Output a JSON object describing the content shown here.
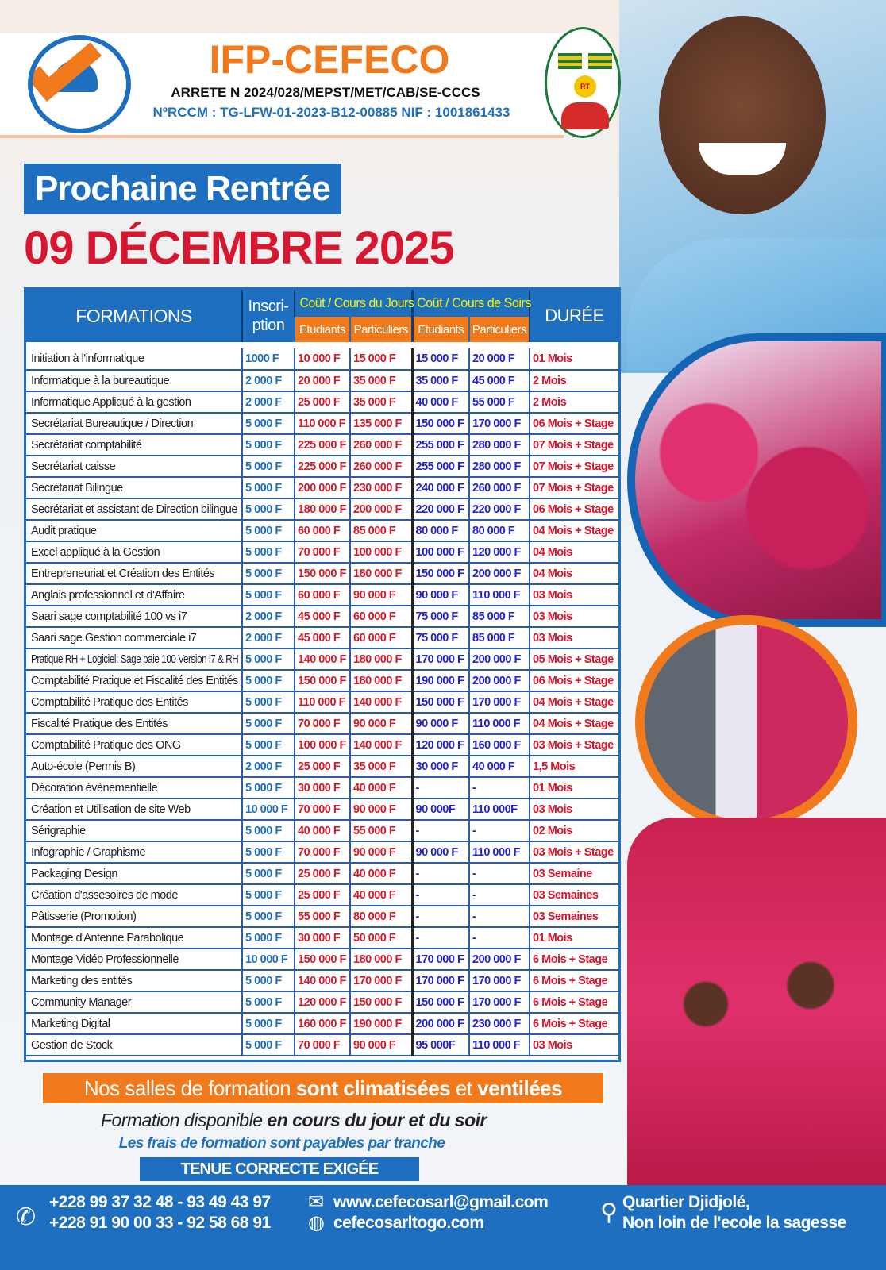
{
  "header": {
    "brand": "IFP-CEFECO",
    "arrete": "ARRETE N 2024/028/MEPST/MET/CAB/SE-CCCS",
    "rccm": "NºRCCM : TG-LFW-01-2023-B12-00885 NIF : 1001861433",
    "seal_text": "RT"
  },
  "announcement": {
    "title": "Prochaine Rentrée",
    "date": "09 DÉCEMBRE 2025"
  },
  "table": {
    "headers": {
      "formations": "FORMATIONS",
      "inscription": "Inscri-ption",
      "cours_jour": "Coût / Cours du Jours",
      "cours_soir": "Coût / Cours de Soirs",
      "etudiants": "Etudiants",
      "particuliers": "Particuliers",
      "duree": "DURÉE"
    },
    "rows": [
      [
        "Initiation à l'informatique",
        "1000 F",
        "10 000 F",
        "15 000 F",
        "15 000 F",
        "20 000 F",
        "01 Mois"
      ],
      [
        "Informatique à la bureautique",
        "2 000 F",
        "20 000 F",
        "35 000 F",
        "35 000 F",
        "45 000 F",
        "2 Mois"
      ],
      [
        "Informatique Appliqué à la gestion",
        "2 000 F",
        "25 000 F",
        "35 000 F",
        "40 000 F",
        "55 000 F",
        "2 Mois"
      ],
      [
        "Secrétariat Bureautique / Direction",
        "5 000 F",
        "110 000 F",
        "135 000 F",
        "150 000 F",
        "170 000 F",
        "06 Mois + Stage"
      ],
      [
        "Secrétariat comptabilité",
        "5 000 F",
        "225 000 F",
        "260 000 F",
        "255 000 F",
        "280 000 F",
        "07 Mois + Stage"
      ],
      [
        "Secrétariat caisse",
        "5 000 F",
        "225 000 F",
        "260 000 F",
        "255 000 F",
        "280 000 F",
        "07 Mois + Stage"
      ],
      [
        "Secrétariat Bilingue",
        "5 000 F",
        "200 000 F",
        "230 000 F",
        "240 000 F",
        "260 000 F",
        "07 Mois + Stage"
      ],
      [
        "Secrétariat et assistant de Direction bilingue",
        "5 000 F",
        "180 000 F",
        "200 000 F",
        "220 000 F",
        "220 000 F",
        "06 Mois + Stage"
      ],
      [
        "Audit pratique",
        "5 000 F",
        "60 000 F",
        "85 000 F",
        "80 000 F",
        "80 000 F",
        "04 Mois + Stage"
      ],
      [
        "Excel appliqué à la Gestion",
        "5 000 F",
        "70 000 F",
        "100 000 F",
        "100 000 F",
        "120 000 F",
        "04 Mois"
      ],
      [
        "Entrepreneuriat et Création des Entités",
        "5 000 F",
        "150 000 F",
        "180 000 F",
        "150 000 F",
        "200 000 F",
        "04 Mois"
      ],
      [
        "Anglais professionnel et d'Affaire",
        "5 000 F",
        "60 000 F",
        "90 000 F",
        "90 000 F",
        "110 000 F",
        "03 Mois"
      ],
      [
        "Saari sage comptabilité 100 vs i7",
        "2 000 F",
        "45 000 F",
        "60 000 F",
        "75 000 F",
        "85 000 F",
        "03 Mois"
      ],
      [
        "Saari sage Gestion commerciale i7",
        "2 000 F",
        "45 000 F",
        "60 000 F",
        "75 000 F",
        "85 000 F",
        "03 Mois"
      ],
      [
        "Pratique RH + Logiciel: Sage paie 100 Version i7 & RH",
        "5 000 F",
        "140 000 F",
        "180 000 F",
        "170 000 F",
        "200 000 F",
        "05 Mois + Stage"
      ],
      [
        "Comptabilité Pratique et Fiscalité des Entités",
        "5 000 F",
        "150 000 F",
        "180 000 F",
        "190 000 F",
        "200 000 F",
        "06 Mois + Stage"
      ],
      [
        "Comptabilité Pratique des Entités",
        "5 000 F",
        "110 000 F",
        "140 000 F",
        "150 000 F",
        "170 000 F",
        "04 Mois + Stage"
      ],
      [
        "Fiscalité Pratique des Entités",
        "5 000 F",
        "70 000 F",
        "90 000 F",
        "90 000 F",
        "110 000 F",
        "04 Mois + Stage"
      ],
      [
        "Comptabilité Pratique des ONG",
        "5 000 F",
        "100 000 F",
        "140 000 F",
        "120 000 F",
        "160 000 F",
        "03 Mois + Stage"
      ],
      [
        "Auto-école (Permis B)",
        "2 000 F",
        "25 000 F",
        "35 000 F",
        "30 000 F",
        "40 000 F",
        "1,5 Mois"
      ],
      [
        "Décoration évènementielle",
        "5 000 F",
        "30 000 F",
        "40 000 F",
        "-",
        "-",
        "01 Mois"
      ],
      [
        "Création et Utilisation de site Web",
        "10 000 F",
        "70 000 F",
        "90 000 F",
        "90 000F",
        "110 000F",
        "03 Mois"
      ],
      [
        "Sérigraphie",
        "5 000 F",
        "40 000 F",
        "55 000 F",
        "-",
        "-",
        "02 Mois"
      ],
      [
        "Infographie / Graphisme",
        "5 000 F",
        "70 000 F",
        "90 000 F",
        "90 000 F",
        "110 000 F",
        "03 Mois + Stage"
      ],
      [
        "Packaging Design",
        "5 000 F",
        "25 000 F",
        "40 000 F",
        "-",
        "-",
        "03 Semaine"
      ],
      [
        "Création d'assesoires de mode",
        "5 000 F",
        "25 000 F",
        "40 000 F",
        "-",
        "-",
        "03 Semaines"
      ],
      [
        "Pâtisserie (Promotion)",
        "5 000 F",
        "55 000 F",
        "80 000 F",
        "-",
        "-",
        "03 Semaines"
      ],
      [
        "Montage d'Antenne Parabolique",
        "5 000 F",
        "30 000 F",
        "50 000 F",
        "-",
        "-",
        "01 Mois"
      ],
      [
        "Montage Vidéo Professionnelle",
        "10 000 F",
        "150 000 F",
        "180 000 F",
        "170 000 F",
        "200 000 F",
        "6 Mois + Stage"
      ],
      [
        "Marketing des entités",
        "5 000 F",
        "140 000 F",
        "170 000 F",
        "170 000 F",
        "170 000 F",
        "6 Mois + Stage"
      ],
      [
        "Community Manager",
        "5 000 F",
        "120 000 F",
        "150 000 F",
        "150 000 F",
        "170 000 F",
        "6 Mois + Stage"
      ],
      [
        "Marketing Digital",
        "5 000 F",
        "160 000 F",
        "190 000 F",
        "200 000 F",
        "230 000 F",
        "6 Mois + Stage"
      ],
      [
        "Gestion de Stock",
        "5 000 F",
        "70 000 F",
        "90 000 F",
        "95 000F",
        "110 000 F",
        "03 Mois"
      ]
    ]
  },
  "notes": {
    "clim_part1": "Nos salles de formation",
    "clim_part2": "sont climatisées",
    "clim_part3": "et",
    "clim_part4": "ventilées",
    "dispo_part1": "Formation disponible",
    "dispo_part2": "en cours du jour et du soir",
    "tranche": "Les frais de formation sont payables par tranche",
    "tenue": "TENUE CORRECTE EXIGÉE"
  },
  "footer": {
    "phone1": "+228 99 37 32 48 - 93 49 43 97",
    "phone2": "+228 91 90 00 33 - 92 58 68 91",
    "email": "www.cefecosarl@gmail.com",
    "website": "cefecosarltogo.com",
    "address1": "Quartier Djidjolé,",
    "address2": "Non loin de l'ecole la sagesse"
  },
  "colors": {
    "primary_blue": "#1f6fc0",
    "orange": "#f07a1c",
    "red": "#d7172f",
    "yellow": "#f7f400"
  },
  "icons": [
    "phone-whatsapp-icon",
    "mail-icon",
    "globe-icon",
    "location-pin-icon"
  ]
}
